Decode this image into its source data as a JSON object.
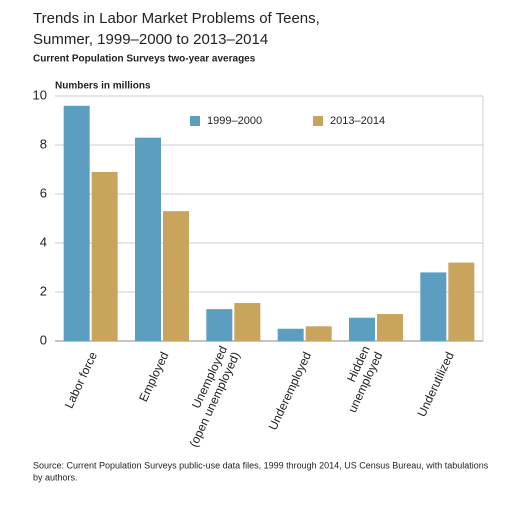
{
  "chart_data": {
    "type": "bar",
    "title": [
      "Trends in Labor Market Problems of Teens,",
      "Summer, 1999–2000 to 2013–2014"
    ],
    "subtitle": "Current Population Surveys two-year averages",
    "y_label": "Numbers in millions",
    "categories": [
      [
        "Labor force"
      ],
      [
        "Employed"
      ],
      [
        "Unemployed",
        "(open unemployed)"
      ],
      [
        "Underemployed"
      ],
      [
        "Hidden",
        "unemployed"
      ],
      [
        "Underutilized"
      ]
    ],
    "series": [
      {
        "name": "1999–2000",
        "color": "#5b9ebf",
        "values": [
          9.6,
          8.3,
          1.3,
          0.5,
          0.95,
          2.8
        ]
      },
      {
        "name": "2013–2014",
        "color": "#c9a45c",
        "values": [
          6.9,
          5.3,
          1.55,
          0.6,
          1.1,
          3.2
        ]
      }
    ],
    "ylim": [
      0,
      10
    ],
    "yticks": [
      0,
      2,
      4,
      6,
      8,
      10
    ],
    "grid": true,
    "source": [
      "Source: Current Population Surveys public-use data files, 1999 through 2014, US Census Bureau, with tabulations",
      "by authors."
    ]
  }
}
